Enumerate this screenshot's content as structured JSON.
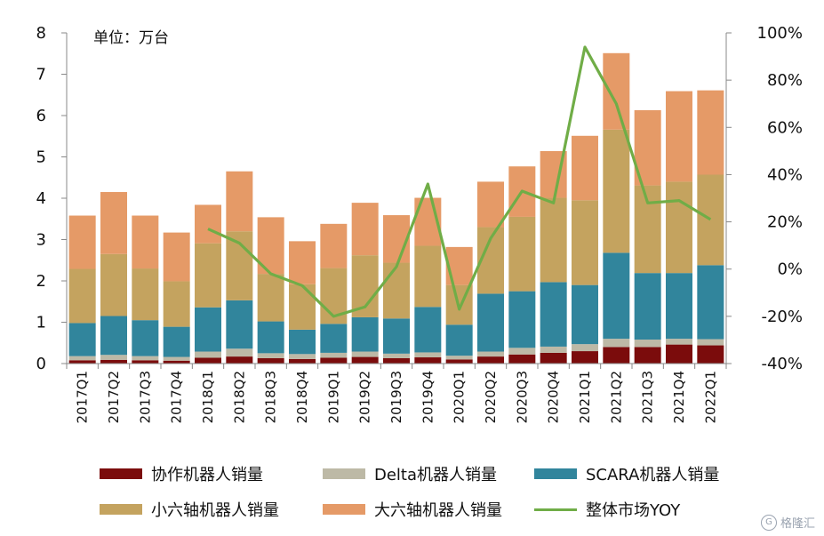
{
  "chart_data": {
    "type": "bar",
    "stacked": true,
    "unit_label": "单位：万台",
    "categories": [
      "2017Q1",
      "2017Q2",
      "2017Q3",
      "2017Q4",
      "2018Q1",
      "2018Q2",
      "2018Q3",
      "2018Q4",
      "2019Q1",
      "2019Q2",
      "2019Q3",
      "2019Q4",
      "2020Q1",
      "2020Q2",
      "2020Q3",
      "2020Q4",
      "2021Q1",
      "2021Q2",
      "2021Q3",
      "2021Q4",
      "2022Q1"
    ],
    "series": [
      {
        "name": "协作机器人销量",
        "color": "#7b0c0c",
        "values": [
          0.08,
          0.09,
          0.08,
          0.07,
          0.14,
          0.17,
          0.13,
          0.11,
          0.14,
          0.16,
          0.13,
          0.15,
          0.1,
          0.17,
          0.22,
          0.26,
          0.3,
          0.4,
          0.4,
          0.46,
          0.44
        ]
      },
      {
        "name": "Delta机器人销量",
        "color": "#bdb9a6",
        "values": [
          0.1,
          0.12,
          0.1,
          0.09,
          0.15,
          0.19,
          0.12,
          0.12,
          0.12,
          0.13,
          0.11,
          0.12,
          0.09,
          0.12,
          0.16,
          0.15,
          0.17,
          0.2,
          0.18,
          0.14,
          0.15
        ]
      },
      {
        "name": "SCARA机器人销量",
        "color": "#31859c",
        "values": [
          0.8,
          0.94,
          0.87,
          0.73,
          1.07,
          1.17,
          0.77,
          0.59,
          0.7,
          0.83,
          0.85,
          1.1,
          0.75,
          1.4,
          1.37,
          1.56,
          1.43,
          2.08,
          1.61,
          1.59,
          1.79
        ]
      },
      {
        "name": "小六轴机器人销量",
        "color": "#c4a35f",
        "values": [
          1.31,
          1.5,
          1.25,
          1.1,
          1.55,
          1.67,
          1.15,
          1.1,
          1.35,
          1.5,
          1.35,
          1.48,
          0.96,
          1.61,
          1.8,
          2.04,
          2.05,
          2.98,
          2.12,
          2.21,
          2.19
        ]
      },
      {
        "name": "大六轴机器人销量",
        "color": "#e59a67",
        "values": [
          1.29,
          1.5,
          1.28,
          1.18,
          0.93,
          1.45,
          1.37,
          1.04,
          1.07,
          1.27,
          1.15,
          1.16,
          0.92,
          1.1,
          1.22,
          1.13,
          1.56,
          1.85,
          1.82,
          2.19,
          2.04
        ]
      }
    ],
    "yoy": {
      "name": "整体市场YOY",
      "color": "#70ad47",
      "values": [
        null,
        null,
        null,
        null,
        0.17,
        0.11,
        -0.02,
        -0.07,
        -0.2,
        -0.16,
        0.01,
        0.36,
        -0.17,
        0.13,
        0.33,
        0.28,
        0.94,
        0.7,
        0.28,
        0.29,
        0.21
      ]
    },
    "y_left": {
      "range": [
        0,
        8
      ],
      "ticks": [
        "0",
        "1",
        "2",
        "3",
        "4",
        "5",
        "6",
        "7",
        "8"
      ]
    },
    "y_right": {
      "range": [
        -0.4,
        1.0
      ],
      "ticks": [
        "-40%",
        "-20%",
        "0%",
        "20%",
        "40%",
        "60%",
        "80%",
        "100%"
      ]
    },
    "grid": false,
    "legend": "bottom"
  },
  "watermark": "格隆汇",
  "watermark_icon": "G"
}
